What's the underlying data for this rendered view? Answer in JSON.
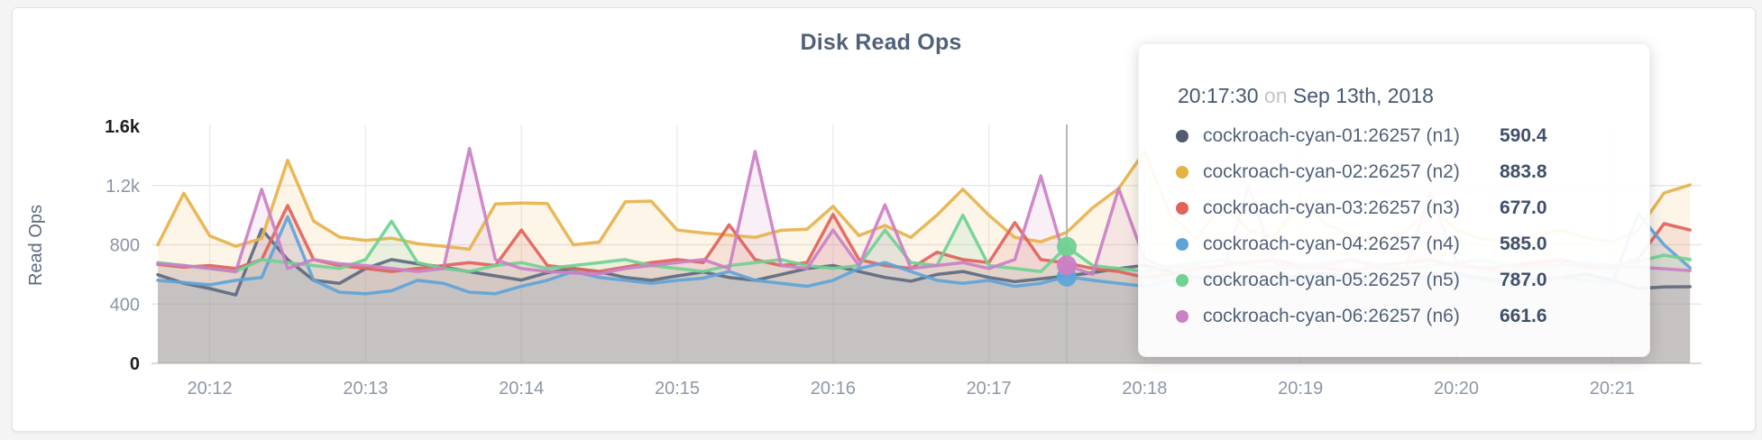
{
  "page": {
    "background": "#f4f4f5",
    "card_background": "#ffffff"
  },
  "chart_data": {
    "type": "line",
    "title": "Disk Read Ops",
    "ylabel": "Read Ops",
    "ylim": [
      0,
      1600
    ],
    "grid": true,
    "x_start": "20:11:40",
    "x_step_seconds": 10,
    "x_tick_labels": [
      "20:12",
      "20:13",
      "20:14",
      "20:15",
      "20:16",
      "20:17",
      "20:18",
      "20:19",
      "20:20",
      "20:21"
    ],
    "y_ticks": [
      {
        "label": "1.6k",
        "value": 1600,
        "emphasis": true
      },
      {
        "label": "1.2k",
        "value": 1200,
        "emphasis": false
      },
      {
        "label": "800",
        "value": 800,
        "emphasis": false
      },
      {
        "label": "400",
        "value": 400,
        "emphasis": false
      },
      {
        "label": "0",
        "value": 0,
        "emphasis": true
      }
    ],
    "series": [
      {
        "name": "cockroach-cyan-01:26257 (n1)",
        "short": "n1",
        "color": "#5d6a80",
        "values": [
          598,
          540,
          505,
          462,
          905,
          700,
          560,
          540,
          640,
          700,
          672,
          650,
          618,
          590,
          562,
          612,
          640,
          618,
          580,
          560,
          590,
          616,
          580,
          560,
          600,
          640,
          660,
          620,
          580,
          555,
          600,
          620,
          580,
          552,
          570,
          590.4,
          612,
          640,
          662,
          620,
          580,
          560,
          540,
          565,
          590,
          610,
          570,
          545,
          560,
          585,
          605,
          575,
          550,
          565,
          580,
          600,
          560,
          505,
          515,
          517
        ]
      },
      {
        "name": "cockroach-cyan-02:26257 (n2)",
        "short": "n2",
        "color": "#e7b24b",
        "values": [
          800,
          1148,
          860,
          790,
          842,
          1370,
          960,
          852,
          830,
          845,
          808,
          790,
          770,
          1075,
          1082,
          1078,
          800,
          818,
          1090,
          1095,
          900,
          880,
          865,
          850,
          898,
          905,
          1060,
          862,
          930,
          850,
          1000,
          1175,
          1000,
          850,
          820,
          883.8,
          1050,
          1180,
          1430,
          1000,
          840,
          1080,
          900,
          850,
          1100,
          940,
          860,
          830,
          880,
          1060,
          900,
          840,
          820,
          860,
          900,
          850,
          820,
          900,
          1150,
          1204
        ]
      },
      {
        "name": "cockroach-cyan-03:26257 (n3)",
        "short": "n3",
        "color": "#e0635c",
        "values": [
          668,
          650,
          660,
          640,
          700,
          1065,
          700,
          660,
          640,
          620,
          640,
          660,
          680,
          660,
          900,
          660,
          640,
          620,
          650,
          680,
          700,
          680,
          935,
          700,
          660,
          680,
          1005,
          700,
          660,
          640,
          750,
          700,
          680,
          950,
          700,
          677,
          640,
          620,
          580,
          600,
          640,
          660,
          680,
          700,
          660,
          640,
          620,
          660,
          680,
          700,
          660,
          640,
          660,
          680,
          700,
          660,
          640,
          705,
          943,
          900
        ]
      },
      {
        "name": "cockroach-cyan-04:26257 (n4)",
        "short": "n4",
        "color": "#5ea4d9",
        "values": [
          560,
          545,
          530,
          560,
          580,
          990,
          560,
          480,
          470,
          490,
          560,
          540,
          480,
          470,
          520,
          560,
          620,
          580,
          560,
          540,
          560,
          575,
          620,
          560,
          540,
          520,
          560,
          640,
          680,
          620,
          560,
          540,
          560,
          520,
          540,
          585,
          560,
          540,
          520,
          560,
          580,
          600,
          560,
          540,
          560,
          580,
          560,
          540,
          560,
          580,
          600,
          560,
          540,
          560,
          580,
          560,
          540,
          1010,
          800,
          645
        ]
      },
      {
        "name": "cockroach-cyan-05:26257 (n5)",
        "short": "n5",
        "color": "#70d192",
        "values": [
          680,
          660,
          640,
          620,
          700,
          680,
          660,
          640,
          700,
          960,
          680,
          640,
          620,
          660,
          680,
          640,
          660,
          680,
          700,
          660,
          640,
          620,
          660,
          680,
          700,
          660,
          640,
          660,
          900,
          680,
          660,
          1000,
          660,
          640,
          620,
          787,
          660,
          640,
          620,
          660,
          680,
          700,
          660,
          640,
          660,
          680,
          700,
          660,
          640,
          660,
          680,
          700,
          660,
          640,
          660,
          680,
          660,
          687,
          730,
          700
        ]
      },
      {
        "name": "cockroach-cyan-06:26257 (n6)",
        "short": "n6",
        "color": "#cb80c4",
        "values": [
          672,
          660,
          640,
          618,
          1175,
          640,
          700,
          672,
          660,
          640,
          620,
          640,
          1450,
          700,
          640,
          620,
          610,
          605,
          640,
          660,
          680,
          700,
          640,
          1430,
          660,
          640,
          900,
          660,
          1070,
          640,
          660,
          680,
          640,
          700,
          1265,
          661.6,
          600,
          1180,
          700,
          640,
          660,
          620,
          1200,
          680,
          640,
          660,
          700,
          640,
          620,
          1150,
          680,
          640,
          620,
          660,
          680,
          640,
          655,
          650,
          638,
          626
        ]
      }
    ],
    "hover": {
      "index": 35,
      "time": "20:17:30",
      "dot_series": [
        "n4",
        "n5",
        "n6"
      ],
      "guideline_color": "#b8b8b8"
    }
  },
  "chart": {
    "title": "Disk Read Ops",
    "y_axis_label": "Read Ops"
  },
  "tooltip": {
    "time": "20:17:30",
    "connector": "on",
    "date": "Sep 13th, 2018",
    "rows": [
      {
        "name": "cockroach-cyan-01:26257 (n1)",
        "value": "590.4",
        "color": "#515c72"
      },
      {
        "name": "cockroach-cyan-02:26257 (n2)",
        "value": "883.8",
        "color": "#e5b243"
      },
      {
        "name": "cockroach-cyan-03:26257 (n3)",
        "value": "677.0",
        "color": "#e0635c"
      },
      {
        "name": "cockroach-cyan-04:26257 (n4)",
        "value": "585.0",
        "color": "#5ea4d9"
      },
      {
        "name": "cockroach-cyan-05:26257 (n5)",
        "value": "787.0",
        "color": "#70d192"
      },
      {
        "name": "cockroach-cyan-06:26257 (n6)",
        "value": "661.6",
        "color": "#cb80c4"
      }
    ]
  }
}
